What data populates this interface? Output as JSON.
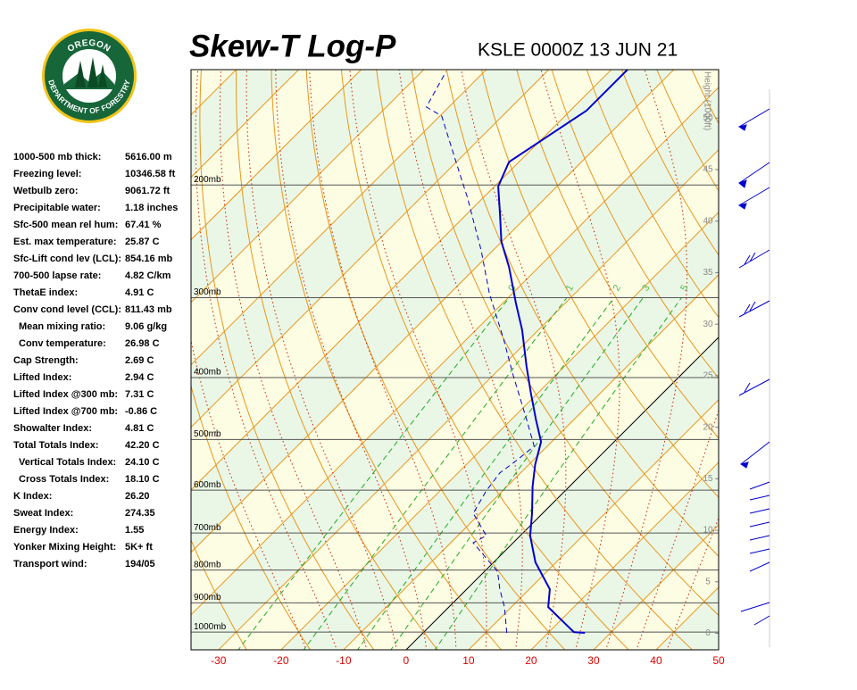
{
  "header": {
    "title": "Skew-T Log-P",
    "station": "KSLE 0000Z 13 JUN 21",
    "logo_top": "OREGON",
    "logo_bottom": "DEPARTMENT OF FORESTRY"
  },
  "indices": [
    {
      "label": "1000-500 mb thick:",
      "value": "5616.00 m"
    },
    {
      "label": "Freezing level:",
      "value": "10346.58 ft"
    },
    {
      "label": "Wetbulb zero:",
      "value": "9061.72 ft"
    },
    {
      "label": "Precipitable water:",
      "value": "1.18 inches"
    },
    {
      "label": "Sfc-500 mean rel hum:",
      "value": "67.41 %"
    },
    {
      "label": "Est. max temperature:",
      "value": "25.87 C"
    },
    {
      "label": "Sfc-Lift cond lev (LCL):",
      "value": "854.16 mb"
    },
    {
      "label": "700-500 lapse rate:",
      "value": "4.82 C/km"
    },
    {
      "label": "ThetaE index:",
      "value": "4.91 C"
    },
    {
      "label": "Conv cond level (CCL):",
      "value": "811.43 mb"
    },
    {
      "label": "Mean mixing ratio:",
      "value": "9.06 g/kg"
    },
    {
      "label": "Conv temperature:",
      "value": "26.98 C"
    },
    {
      "label": "Cap Strength:",
      "value": "2.69 C"
    },
    {
      "label": "Lifted Index:",
      "value": "2.94 C"
    },
    {
      "label": "Lifted Index @300 mb:",
      "value": "7.31 C"
    },
    {
      "label": "Lifted Index @700 mb:",
      "value": "-0.86 C"
    },
    {
      "label": "Showalter Index:",
      "value": "4.81 C"
    },
    {
      "label": "Total Totals Index:",
      "value": "42.20 C"
    },
    {
      "label": "Vertical Totals Index:",
      "value": "24.10 C"
    },
    {
      "label": "Cross Totals Index:",
      "value": "18.10 C"
    },
    {
      "label": "K Index:",
      "value": "26.20"
    },
    {
      "label": "Sweat Index:",
      "value": "274.35"
    },
    {
      "label": "Energy Index:",
      "value": "1.55"
    },
    {
      "label": "Yonker Mixing Height:",
      "value": "5K+ ft"
    },
    {
      "label": "Transport wind:",
      "value": "194/05"
    }
  ],
  "chart_data": {
    "type": "skewt",
    "xlim": [
      -34.4,
      50
    ],
    "xticks": [
      -30,
      -20,
      -10,
      0,
      10,
      20,
      30,
      40,
      50
    ],
    "ylim": [
      1066,
      132
    ],
    "ylog": true,
    "yticks": [
      {
        "value": 1000,
        "label": "1000mb"
      },
      {
        "value": 900,
        "label": "900mb"
      },
      {
        "value": 800,
        "label": "800mb"
      },
      {
        "value": 700,
        "label": "700mb"
      },
      {
        "value": 600,
        "label": "600mb"
      },
      {
        "value": 500,
        "label": "500mb"
      },
      {
        "value": 400,
        "label": "400mb"
      },
      {
        "value": 300,
        "label": "300mb"
      },
      {
        "value": 200,
        "label": "200mb"
      }
    ],
    "y2label": "Height (1000ft)",
    "y2lim": [
      -1.6,
      54.7
    ],
    "y2ticks": [
      0,
      5,
      10,
      15,
      20,
      25,
      30,
      35,
      40,
      45,
      50
    ],
    "mixing_ratio_ticks": [
      {
        "value": 0.4,
        "label": "0"
      },
      1,
      2,
      3,
      5
    ],
    "temperature": {
      "color": "#0000cc",
      "pressure": [
        1003,
        1000,
        914,
        857,
        778,
        707,
        652,
        592,
        547,
        504,
        465,
        423,
        384,
        337,
        306,
        269,
        245,
        222,
        201,
        184,
        153,
        132
      ],
      "values": [
        25.9,
        24.0,
        15.9,
        13.3,
        6.7,
        1.6,
        -1.7,
        -5.9,
        -9.0,
        -11.7,
        -16.1,
        -21.1,
        -26.1,
        -32.6,
        -37.9,
        -44.7,
        -50.1,
        -54.7,
        -59.4,
        -61.6,
        -57.4,
        -57.4
      ]
    },
    "dewpoint": {
      "color": "#0000cc",
      "pressure": [
        1003,
        914,
        857,
        804,
        725,
        707,
        652,
        602,
        564,
        538,
        512,
        465,
        396,
        349,
        296,
        253,
        209,
        183,
        156,
        151,
        133
      ],
      "values": [
        13.4,
        8.9,
        5.3,
        2.1,
        -6.4,
        -5.4,
        -11.1,
        -12.6,
        -13.3,
        -12.6,
        -12.1,
        -17.6,
        -26.9,
        -34.0,
        -43.6,
        -51.9,
        -62.6,
        -70.4,
        -79.7,
        -83.6,
        -86.1
      ]
    }
  }
}
